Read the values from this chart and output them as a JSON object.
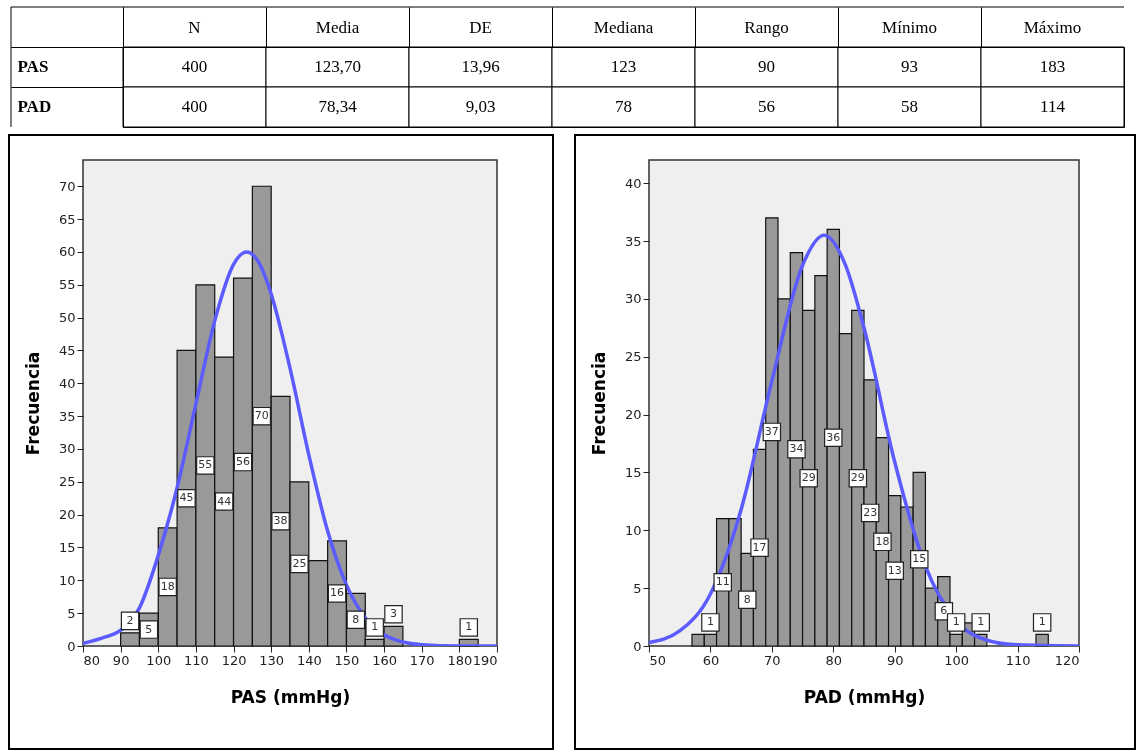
{
  "chart_data": [
    {
      "type": "other",
      "categories": [
        "N",
        "Media",
        "DE",
        "Mediana",
        "Rango",
        "Mínimo",
        "Máximo"
      ],
      "y_categories": [
        "PAS",
        "PAD"
      ],
      "cell_labels": [
        [
          "400",
          "123,70",
          "13,96",
          "123",
          "90",
          "93",
          "183"
        ],
        [
          "400",
          "78,34",
          "9,03",
          "78",
          "56",
          "58",
          "114"
        ]
      ]
    },
    {
      "type": "histogram",
      "xlabel": "PAS (mmHg)",
      "ylabel": "Frecuencia",
      "color": "#999999",
      "bins": [
        90,
        95,
        100,
        105,
        110,
        115,
        120,
        125,
        130,
        135,
        140,
        145,
        150,
        155,
        160,
        165,
        170,
        175,
        180,
        185
      ],
      "values": [
        2,
        5,
        18,
        45,
        55,
        44,
        56,
        70,
        38,
        25,
        13,
        16,
        8,
        1,
        3,
        0,
        0,
        0,
        1
      ],
      "value_labels": [
        "2",
        "5",
        "18",
        "45",
        "55",
        "44",
        "56",
        "70",
        "38",
        "25",
        null,
        "16",
        "8",
        "1",
        "3",
        null,
        null,
        null,
        "1"
      ],
      "series": [
        {
          "type": "line",
          "color": "#5b5bff",
          "x": [
            80,
            85,
            90,
            95,
            100,
            105,
            110,
            115,
            120,
            123.5,
            127,
            130,
            135,
            140,
            145,
            150,
            155,
            160,
            165,
            170,
            180,
            190
          ],
          "values": [
            0.4,
            1.2,
            2.4,
            5.8,
            13.8,
            24.1,
            36.9,
            49.5,
            58.1,
            60,
            58.1,
            53.6,
            42.3,
            29.1,
            17.5,
            9.3,
            4.3,
            1.7,
            0.6,
            0.2,
            0,
            0
          ]
        }
      ],
      "xlim": [
        80,
        190
      ],
      "xticks": [
        80,
        90,
        100,
        110,
        120,
        130,
        140,
        150,
        160,
        170,
        180,
        190
      ],
      "ylim": [
        0,
        74
      ],
      "yticks": [
        0,
        5,
        10,
        15,
        20,
        25,
        30,
        35,
        40,
        45,
        50,
        55,
        60,
        65,
        70
      ],
      "grid": false
    },
    {
      "type": "histogram",
      "xlabel": "PAD (mmHg)",
      "ylabel": "Frecuencia",
      "color": "#999999",
      "bins": [
        57,
        59,
        61,
        63,
        65,
        67,
        69,
        71,
        73,
        75,
        77,
        79,
        81,
        83,
        85,
        87,
        89,
        91,
        93,
        95,
        97,
        99,
        101,
        103,
        105,
        107,
        109,
        111,
        113,
        115
      ],
      "values": [
        1,
        1,
        11,
        11,
        8,
        17,
        37,
        30,
        34,
        29,
        32,
        36,
        27,
        29,
        23,
        18,
        13,
        12,
        15,
        5,
        6,
        1,
        2,
        1,
        0,
        0,
        0,
        0,
        1
      ],
      "value_labels": [
        null,
        "1",
        "11",
        null,
        "8",
        "17",
        "37",
        null,
        "34",
        "29",
        null,
        "36",
        null,
        "29",
        "23",
        "18",
        "13",
        null,
        "15",
        null,
        "6",
        "1",
        null,
        "1",
        null,
        null,
        null,
        null,
        "1"
      ],
      "series": [
        {
          "type": "line",
          "color": "#5b5bff",
          "x": [
            50,
            55,
            60,
            65,
            70,
            75,
            78.5,
            82,
            85,
            90,
            95,
            100,
            105,
            110,
            120
          ],
          "values": [
            0.3,
            1.3,
            4.5,
            11.8,
            22.9,
            32.9,
            35.5,
            32.9,
            27.5,
            15.9,
            6.9,
            2.2,
            0.5,
            0.1,
            0
          ]
        }
      ],
      "xlim": [
        50,
        120
      ],
      "xticks": [
        50,
        60,
        70,
        80,
        90,
        100,
        110,
        120
      ],
      "ylim": [
        0,
        42
      ],
      "yticks": [
        0,
        5,
        10,
        15,
        20,
        25,
        30,
        35,
        40
      ],
      "grid": false
    }
  ]
}
